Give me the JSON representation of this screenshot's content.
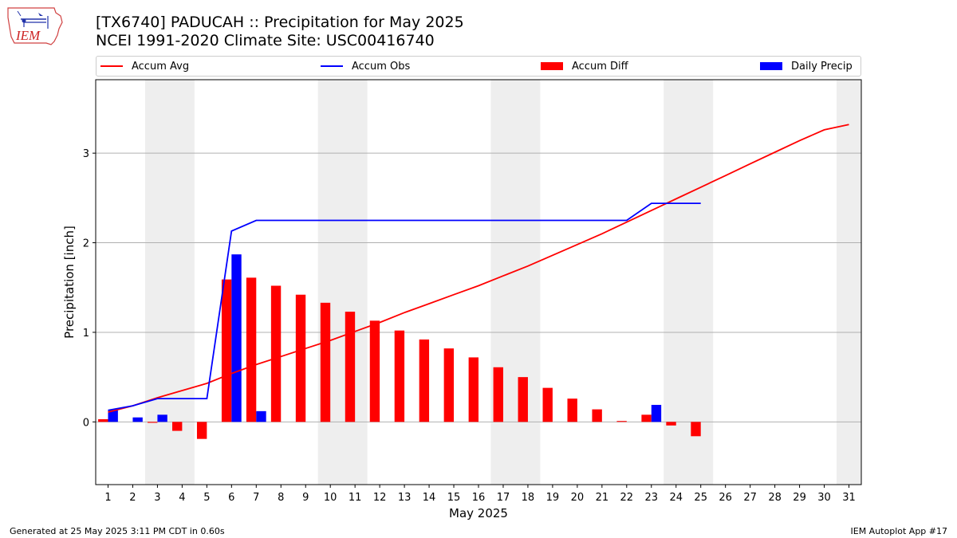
{
  "header": {
    "logo_text": "IEM",
    "title_line1": "[TX6740] PADUCAH :: Precipitation for May 2025",
    "title_line2": "NCEI 1991-2020 Climate Site: USC00416740"
  },
  "legend": {
    "placement": "top",
    "items": [
      {
        "label": "Accum Avg",
        "kind": "line",
        "color": "#ff0000"
      },
      {
        "label": "Accum Obs",
        "kind": "line",
        "color": "#0000ff"
      },
      {
        "label": "Accum Diff",
        "kind": "patch",
        "color": "#ff0000"
      },
      {
        "label": "Daily Precip",
        "kind": "patch",
        "color": "#0000ff"
      }
    ]
  },
  "footer": {
    "left": "Generated at 25 May 2025 3:11 PM CDT in 0.60s",
    "right": "IEM Autoplot App #17"
  },
  "chart_data": {
    "type": "bar",
    "title": "[TX6740] PADUCAH :: Precipitation for May 2025",
    "subtitle": "NCEI 1991-2020 Climate Site: USC00416740",
    "xlabel": "May 2025",
    "ylabel": "Precipitation [inch]",
    "xlim": [
      0.5,
      31.5
    ],
    "ylim": [
      -0.7,
      3.82
    ],
    "x": [
      1,
      2,
      3,
      4,
      5,
      6,
      7,
      8,
      9,
      10,
      11,
      12,
      13,
      14,
      15,
      16,
      17,
      18,
      19,
      20,
      21,
      22,
      23,
      24,
      25,
      26,
      27,
      28,
      29,
      30,
      31
    ],
    "x_ticks": [
      "1",
      "2",
      "3",
      "4",
      "5",
      "6",
      "7",
      "8",
      "9",
      "10",
      "11",
      "12",
      "13",
      "14",
      "15",
      "16",
      "17",
      "18",
      "19",
      "20",
      "21",
      "22",
      "23",
      "24",
      "25",
      "26",
      "27",
      "28",
      "29",
      "30",
      "31"
    ],
    "y_ticks": [
      0,
      1,
      2,
      3
    ],
    "grid": "horizontal",
    "weekend_shading": [
      [
        2.5,
        4.5
      ],
      [
        9.5,
        11.5
      ],
      [
        16.5,
        18.5
      ],
      [
        23.5,
        25.5
      ],
      [
        30.5,
        31.5
      ]
    ],
    "weekend_color": "#eeeeee",
    "series": [
      {
        "name": "Accum Avg",
        "kind": "line",
        "color": "#ff0000",
        "x": [
          1,
          2,
          3,
          4,
          5,
          6,
          7,
          8,
          9,
          10,
          11,
          12,
          13,
          14,
          15,
          16,
          17,
          18,
          19,
          20,
          21,
          22,
          23,
          24,
          25,
          26,
          27,
          28,
          29,
          30,
          31
        ],
        "values": [
          0.11,
          0.18,
          0.27,
          0.35,
          0.43,
          0.54,
          0.64,
          0.73,
          0.82,
          0.91,
          1.01,
          1.11,
          1.22,
          1.32,
          1.42,
          1.52,
          1.63,
          1.74,
          1.86,
          1.98,
          2.1,
          2.23,
          2.36,
          2.49,
          2.62,
          2.75,
          2.88,
          3.01,
          3.14,
          3.26,
          3.32
        ]
      },
      {
        "name": "Accum Obs",
        "kind": "line",
        "color": "#0000ff",
        "x": [
          1,
          2,
          3,
          4,
          5,
          6,
          7,
          8,
          9,
          10,
          11,
          12,
          13,
          14,
          15,
          16,
          17,
          18,
          19,
          20,
          21,
          22,
          23,
          24,
          25
        ],
        "values": [
          0.13,
          0.18,
          0.26,
          0.26,
          0.26,
          2.13,
          2.25,
          2.25,
          2.25,
          2.25,
          2.25,
          2.25,
          2.25,
          2.25,
          2.25,
          2.25,
          2.25,
          2.25,
          2.25,
          2.25,
          2.25,
          2.25,
          2.44,
          2.44,
          2.44
        ]
      },
      {
        "name": "Accum Diff",
        "kind": "bar",
        "color": "#ff0000",
        "x": [
          1,
          2,
          3,
          4,
          5,
          6,
          7,
          8,
          9,
          10,
          11,
          12,
          13,
          14,
          15,
          16,
          17,
          18,
          19,
          20,
          21,
          22,
          23,
          24,
          25
        ],
        "values": [
          0.03,
          0.0,
          -0.01,
          -0.1,
          -0.19,
          1.59,
          1.61,
          1.52,
          1.42,
          1.33,
          1.23,
          1.13,
          1.02,
          0.92,
          0.82,
          0.72,
          0.61,
          0.5,
          0.38,
          0.26,
          0.14,
          0.01,
          0.08,
          -0.04,
          -0.16
        ]
      },
      {
        "name": "Daily Precip",
        "kind": "bar",
        "color": "#0000ff",
        "x": [
          1,
          2,
          3,
          4,
          5,
          6,
          7,
          8,
          9,
          10,
          11,
          12,
          13,
          14,
          15,
          16,
          17,
          18,
          19,
          20,
          21,
          22,
          23,
          24,
          25
        ],
        "values": [
          0.13,
          0.05,
          0.08,
          0.0,
          0.0,
          1.87,
          0.12,
          0.0,
          0.0,
          0.0,
          0.0,
          0.0,
          0.0,
          0.0,
          0.0,
          0.0,
          0.0,
          0.0,
          0.0,
          0.0,
          0.0,
          0.0,
          0.19,
          0.0,
          0.0
        ]
      }
    ]
  }
}
